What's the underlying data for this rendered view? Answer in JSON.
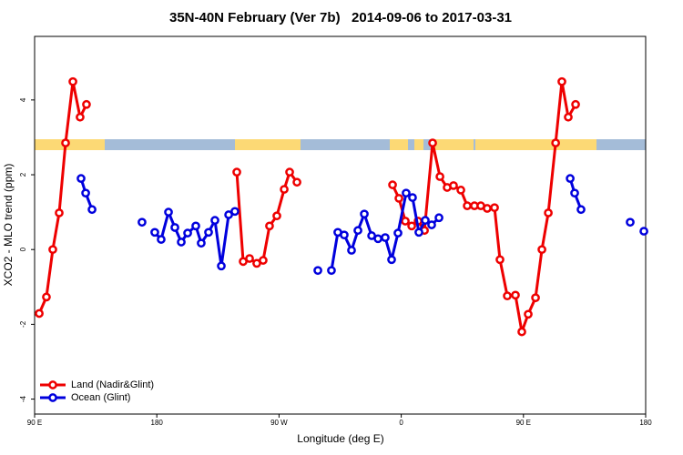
{
  "chart_data": {
    "type": "line",
    "title": "35N-40N February (Ver 7b)   2014-09-06 to 2017-03-31",
    "x_label": "Longitude (deg E)",
    "y_label": "XCO2 - MLO trend (ppm)",
    "xlim": [
      90,
      540
    ],
    "ylim": [
      -4.4,
      5.7
    ],
    "xticks": [
      {
        "value": 90,
        "label": "90 E"
      },
      {
        "value": 180,
        "label": "180"
      },
      {
        "value": 270,
        "label": "90 W"
      },
      {
        "value": 360,
        "label": "0"
      },
      {
        "value": 450,
        "label": "90 E"
      },
      {
        "value": 540,
        "label": "180"
      }
    ],
    "yticks": [
      -4,
      -2,
      0,
      2,
      4
    ],
    "legend": "bottom-left",
    "series": [
      {
        "name": "Land (Nadir&Glint)",
        "color": "#ee0000",
        "x": [
          93.4,
          98.7,
          103.4,
          108.1,
          112.8,
          118.2,
          123.5,
          128.2,
          null,
          238.9,
          243.6,
          248.3,
          253.6,
          258.3,
          263.0,
          268.4,
          273.8,
          277.8,
          283.2,
          null,
          353.6,
          358.3,
          363.0,
          367.7,
          372.4,
          377.1,
          383.1,
          388.5,
          393.8,
          398.5,
          403.9,
          408.6,
          413.9,
          418.6,
          423.3,
          428.7,
          432.7,
          438.1,
          444.1,
          448.8,
          453.5,
          458.9,
          463.6,
          468.3,
          473.7,
          478.3,
          483.0,
          488.4
        ],
        "values": [
          -1.71,
          -1.27,
          0.0,
          0.98,
          2.85,
          4.49,
          3.54,
          3.88,
          null,
          2.07,
          -0.32,
          -0.24,
          -0.37,
          -0.29,
          0.63,
          0.9,
          1.61,
          2.07,
          1.8,
          null,
          1.73,
          1.37,
          0.76,
          0.63,
          0.76,
          0.51,
          2.85,
          1.95,
          1.66,
          1.71,
          1.59,
          1.17,
          1.17,
          1.17,
          1.1,
          1.12,
          -0.27,
          -1.24,
          -1.22,
          -2.2,
          -1.73,
          -1.29,
          0.0,
          0.98,
          2.85,
          4.49,
          3.54,
          3.88
        ]
      },
      {
        "name": "Ocean (Glint)",
        "color": "#0000dd",
        "x": [
          124.2,
          127.6,
          132.3,
          null,
          169.1,
          null,
          178.5,
          183.2,
          188.6,
          193.3,
          198.0,
          202.7,
          208.7,
          212.7,
          218.1,
          222.8,
          227.5,
          232.9,
          237.5,
          null,
          298.6,
          null,
          308.6,
          313.3,
          318.0,
          323.4,
          328.1,
          332.8,
          338.2,
          342.9,
          348.2,
          352.9,
          357.6,
          363.6,
          368.3,
          373.0,
          377.7,
          382.4,
          387.8,
          null,
          484.4,
          487.7,
          492.4,
          null,
          528.6,
          null,
          538.7
        ],
        "values": [
          1.9,
          1.51,
          1.07,
          null,
          0.73,
          null,
          0.46,
          0.27,
          1.0,
          0.59,
          0.2,
          0.44,
          0.63,
          0.17,
          0.46,
          0.78,
          -0.44,
          0.93,
          1.02,
          null,
          -0.56,
          null,
          -0.56,
          0.46,
          0.39,
          -0.02,
          0.51,
          0.95,
          0.37,
          0.29,
          0.32,
          -0.27,
          0.44,
          1.51,
          1.39,
          0.46,
          0.78,
          0.66,
          0.85,
          null,
          1.9,
          1.51,
          1.07,
          null,
          0.73,
          null,
          0.49
        ]
      }
    ]
  }
}
